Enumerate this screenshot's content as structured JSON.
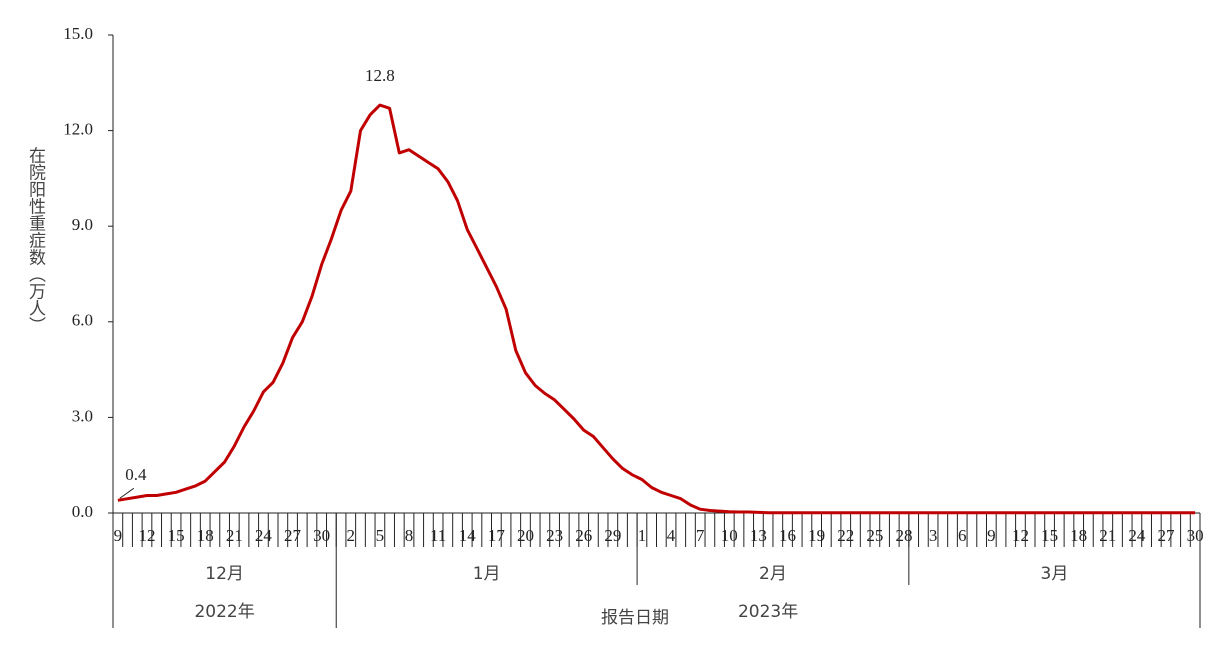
{
  "chart_data": {
    "type": "line",
    "ylabel": "在院阳性重症数（万人）",
    "xlabel": "报告日期",
    "months": [
      "12月",
      "1月",
      "2月",
      "3月"
    ],
    "years": [
      "2022年",
      "2023年"
    ],
    "categories": [
      "9",
      null,
      null,
      "12",
      null,
      null,
      "15",
      null,
      null,
      "18",
      null,
      null,
      "21",
      null,
      null,
      "24",
      null,
      null,
      "27",
      null,
      null,
      "30",
      null,
      null,
      "2",
      null,
      null,
      "5",
      null,
      null,
      "8",
      null,
      null,
      "11",
      null,
      null,
      "14",
      null,
      null,
      "17",
      null,
      null,
      "20",
      null,
      null,
      "23",
      null,
      null,
      "26",
      null,
      null,
      "29",
      null,
      null,
      "1",
      null,
      null,
      "4",
      null,
      null,
      "7",
      null,
      null,
      "10",
      null,
      null,
      "13",
      null,
      null,
      "16",
      null,
      null,
      "19",
      null,
      null,
      "22",
      null,
      null,
      "25",
      null,
      null,
      "28",
      null,
      null,
      "3",
      null,
      null,
      "6",
      null,
      null,
      "9",
      null,
      null,
      "12",
      null,
      null,
      "15",
      null,
      null,
      "18",
      null,
      null,
      "21",
      null,
      null,
      "24",
      null,
      null,
      "27",
      null,
      null,
      "30"
    ],
    "series": [
      {
        "color": "#c00000",
        "values": [
          0.4,
          0.45,
          0.5,
          0.55,
          0.55,
          0.6,
          0.65,
          0.75,
          0.85,
          1.0,
          1.3,
          1.6,
          2.1,
          2.7,
          3.2,
          3.8,
          4.1,
          4.7,
          5.5,
          6.0,
          6.8,
          7.8,
          8.6,
          9.5,
          10.1,
          12.0,
          12.5,
          12.8,
          12.7,
          11.3,
          11.4,
          11.2,
          11.0,
          10.8,
          10.4,
          9.8,
          8.9,
          8.3,
          7.7,
          7.1,
          6.4,
          5.1,
          4.4,
          4.0,
          3.75,
          3.55,
          3.25,
          2.95,
          2.6,
          2.4,
          2.05,
          1.7,
          1.4,
          1.2,
          1.05,
          0.8,
          0.65,
          0.55,
          0.45,
          0.25,
          0.12,
          0.08,
          0.06,
          0.04,
          0.03,
          0.03,
          0.02,
          0.01,
          0.01,
          0.01,
          0.01,
          0.01,
          0.01,
          0.01,
          0.01,
          0.01,
          0.01,
          0.01,
          0.01,
          0.01,
          0.01,
          0.01,
          0.01,
          0.01,
          0.01,
          0.01,
          0.01,
          0.01,
          0.01,
          0.01,
          0.01,
          0.01,
          0.01,
          0.01,
          0.01,
          0.01,
          0.01,
          0.01,
          0.01,
          0.01,
          0.01,
          0.01,
          0.01,
          0.01,
          0.01,
          0.01,
          0.01,
          0.01,
          0.01,
          0.01,
          0.01,
          0.01
        ],
        "value_labels": [
          "0.4",
          null,
          null,
          null,
          null,
          null,
          null,
          null,
          null,
          null,
          null,
          null,
          null,
          null,
          null,
          null,
          null,
          null,
          null,
          null,
          null,
          null,
          null,
          null,
          null,
          null,
          null,
          "12.8",
          null,
          null,
          null,
          null,
          null,
          null,
          null,
          null,
          null,
          null,
          null,
          null,
          null,
          null,
          null,
          null,
          null,
          null,
          null,
          null,
          null,
          null,
          null,
          null,
          null,
          null,
          null,
          null,
          null,
          null,
          null,
          null,
          null,
          null,
          null,
          null,
          null,
          null,
          null,
          null,
          null,
          null,
          null,
          null,
          null,
          null,
          null,
          null,
          null,
          null,
          null,
          null,
          null,
          null,
          null,
          null,
          null,
          null,
          null,
          null,
          null,
          null,
          null,
          null,
          null,
          null,
          null,
          null,
          null,
          null,
          null,
          null,
          null,
          null,
          null,
          null,
          null,
          null,
          null,
          null,
          null,
          null,
          null,
          null
        ]
      }
    ],
    "ylim": [
      0,
      15
    ],
    "yticks": [
      {
        "value": 0,
        "label": "0.0"
      },
      {
        "value": 3,
        "label": "3.0"
      },
      {
        "value": 6,
        "label": "6.0"
      },
      {
        "value": 9,
        "label": "9.0"
      },
      {
        "value": 12,
        "label": "12.0"
      },
      {
        "value": 15,
        "label": "15.0"
      }
    ],
    "grid": false
  }
}
